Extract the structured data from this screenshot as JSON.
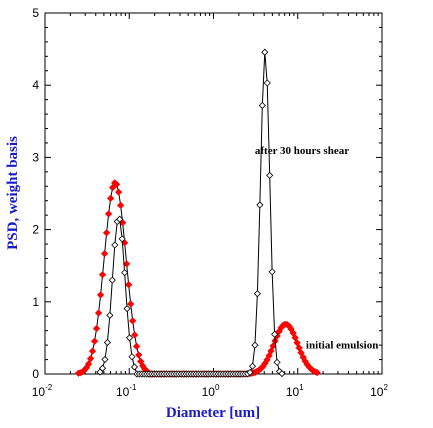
{
  "chart_data": {
    "type": "scatter",
    "xlabel": "Diameter [um]",
    "ylabel": "PSD, weight basis",
    "xscale": "log",
    "xlim": [
      0.01,
      100
    ],
    "ylim": [
      0,
      5
    ],
    "grid": false,
    "x_ticks": [
      {
        "base": "10",
        "exp": "-2",
        "value": 0.01
      },
      {
        "base": "10",
        "exp": "-1",
        "value": 0.1
      },
      {
        "base": "10",
        "exp": "0",
        "value": 1
      },
      {
        "base": "10",
        "exp": "1",
        "value": 10
      },
      {
        "base": "10",
        "exp": "2",
        "value": 100
      }
    ],
    "y_ticks": [
      "0",
      "1",
      "2",
      "3",
      "4",
      "5"
    ],
    "series": [
      {
        "label": "initial emulsion",
        "color": "#ff0000",
        "marker": "filled-diamond",
        "peaks": [
          {
            "center": 0.068,
            "height": 2.65,
            "sigma_log10": 0.13,
            "min": 0.025,
            "max": 0.17
          },
          {
            "center": 7.2,
            "height": 0.69,
            "sigma_log10": 0.14,
            "min": 2.0,
            "max": 17.0
          }
        ],
        "range": [
          0.025,
          17.0
        ],
        "points": 120
      },
      {
        "label": "after 30 hours shear",
        "color": "#000000",
        "marker": "open-diamond",
        "peaks": [
          {
            "center": 0.075,
            "height": 2.17,
            "sigma_log10": 0.075,
            "min": 0.045,
            "max": 0.12
          },
          {
            "center": 4.1,
            "height": 4.47,
            "sigma_log10": 0.055,
            "min": 2.5,
            "max": 6.5
          }
        ],
        "range": [
          0.045,
          6.5
        ],
        "points": 75
      }
    ],
    "annotations": [
      {
        "text": "after 30 hours shear",
        "x": 3.1,
        "y": 3.05
      },
      {
        "text": "initial emulsion",
        "x": 12.5,
        "y": 0.35
      }
    ]
  }
}
